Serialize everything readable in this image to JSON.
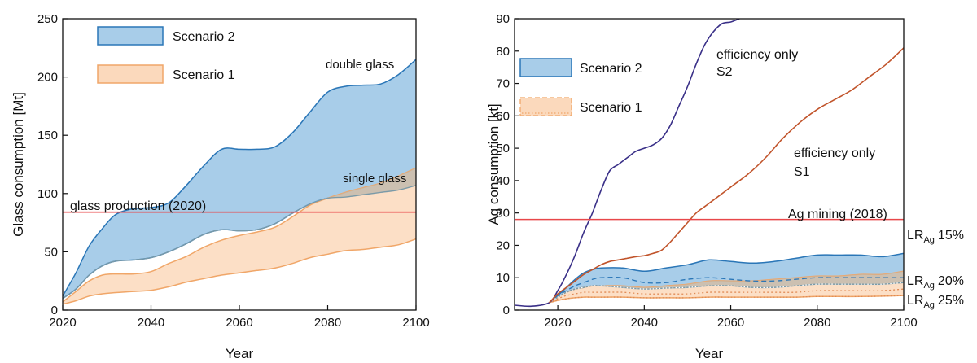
{
  "chart_data": [
    {
      "type": "area",
      "xlabel": "Year",
      "ylabel": "Glass consumption  [Mt]",
      "xlim": [
        2020,
        2100
      ],
      "ylim": [
        0,
        250
      ],
      "xticks": [
        2020,
        2040,
        2060,
        2080,
        2100
      ],
      "yticks": [
        0,
        50,
        100,
        150,
        200,
        250
      ],
      "legend": {
        "placement": "top-left",
        "entries": [
          "Scenario 2",
          "Scenario 1"
        ]
      },
      "colors": {
        "scenario2_fill": "#a8cde9",
        "scenario2_line": "#2a76b7",
        "scenario1_fill": "#fbd9bc",
        "scenario1_line": "#f0a668",
        "overlap_fill": "#c0b8ab",
        "reference": "#e8474a"
      },
      "reference_line": {
        "label": "glass production (2020)",
        "y": 84
      },
      "annotations": [
        "double glass",
        "single glass"
      ],
      "series": [
        {
          "name": "Scenario 2",
          "type": "band",
          "x": [
            2020,
            2023,
            2026,
            2029,
            2032,
            2036,
            2040,
            2044,
            2048,
            2052,
            2056,
            2060,
            2064,
            2068,
            2072,
            2076,
            2080,
            2084,
            2088,
            2092,
            2096,
            2100
          ],
          "upper": [
            12,
            32,
            55,
            70,
            82,
            87,
            88,
            92,
            107,
            124,
            138,
            138,
            138,
            140,
            152,
            170,
            187,
            192,
            193,
            194,
            202,
            215
          ],
          "lower": [
            10,
            18,
            30,
            38,
            42,
            43,
            45,
            50,
            57,
            65,
            69,
            68,
            69,
            74,
            83,
            91,
            96,
            97,
            99,
            101,
            103,
            107
          ]
        },
        {
          "name": "Scenario 1",
          "type": "band",
          "x": [
            2020,
            2023,
            2026,
            2029,
            2032,
            2036,
            2040,
            2044,
            2048,
            2052,
            2056,
            2060,
            2064,
            2068,
            2072,
            2076,
            2080,
            2084,
            2088,
            2092,
            2096,
            2100
          ],
          "upper": [
            7,
            16,
            25,
            30,
            31,
            31,
            33,
            40,
            46,
            54,
            60,
            64,
            67,
            71,
            80,
            90,
            96,
            101,
            105,
            109,
            115,
            122
          ],
          "lower": [
            5,
            8,
            12,
            14,
            15,
            16,
            17,
            20,
            24,
            27,
            30,
            32,
            34,
            36,
            40,
            45,
            48,
            51,
            52,
            54,
            56,
            61
          ]
        }
      ]
    },
    {
      "type": "area",
      "xlabel": "Year",
      "ylabel": "Ag consumption [kt]",
      "xlim": [
        2010,
        2100
      ],
      "ylim": [
        0,
        90
      ],
      "xticks": [
        2020,
        2040,
        2060,
        2080,
        2100
      ],
      "yticks": [
        0,
        10,
        20,
        30,
        40,
        50,
        60,
        70,
        80,
        90
      ],
      "legend": {
        "placement": "top-left",
        "entries": [
          "Scenario 2",
          "Scenario 1"
        ]
      },
      "colors": {
        "scenario2_fill": "#a8cde9",
        "scenario2_line": "#2a76b7",
        "scenario1_fill": "#fbd9bc",
        "scenario1_line": "#f0a668",
        "overlap_fill": "#c0b8ab",
        "reference": "#e8474a",
        "eff_s2": "#3a3088",
        "eff_s1": "#c1542b"
      },
      "reference_line": {
        "label": "Ag mining (2018)",
        "y": 28
      },
      "annotations": [
        "efficiency only",
        "S2",
        "efficiency only",
        "S1"
      ],
      "lr_labels": [
        {
          "base": "LR",
          "sub": "Ag",
          "pct": "15%"
        },
        {
          "base": "LR",
          "sub": "Ag",
          "pct": "20%"
        },
        {
          "base": "LR",
          "sub": "Ag",
          "pct": "25%"
        }
      ],
      "series": [
        {
          "name": "efficiency only S2",
          "type": "line",
          "x": [
            2010,
            2014,
            2018,
            2020,
            2022,
            2024,
            2026,
            2028,
            2030,
            2032,
            2034,
            2036,
            2038,
            2040,
            2042,
            2044,
            2046,
            2048,
            2050,
            2052,
            2054,
            2056,
            2058,
            2060,
            2062
          ],
          "y": [
            1.5,
            1.2,
            2.3,
            6,
            11,
            17,
            24,
            30,
            37,
            43,
            45,
            47,
            49,
            50,
            51,
            53,
            57,
            63,
            69,
            76,
            82,
            86,
            88.5,
            89,
            90
          ]
        },
        {
          "name": "efficiency only S1",
          "type": "line",
          "x": [
            2018,
            2020,
            2022,
            2024,
            2026,
            2028,
            2030,
            2032,
            2034,
            2036,
            2038,
            2040,
            2042,
            2044,
            2046,
            2048,
            2050,
            2052,
            2054,
            2056,
            2060,
            2064,
            2068,
            2072,
            2076,
            2080,
            2084,
            2088,
            2092,
            2096,
            2100
          ],
          "y": [
            2.3,
            5,
            7,
            9,
            11,
            12.5,
            14,
            15,
            15.5,
            16,
            16.5,
            16.8,
            17.5,
            18.5,
            21,
            24,
            27,
            30,
            32,
            34,
            38,
            42,
            47,
            53,
            58,
            62,
            65,
            68,
            72,
            76,
            81
          ]
        },
        {
          "name": "Scenario 2",
          "type": "band",
          "x": [
            2018,
            2020,
            2022,
            2024,
            2026,
            2028,
            2030,
            2035,
            2040,
            2045,
            2050,
            2055,
            2060,
            2065,
            2070,
            2075,
            2080,
            2085,
            2090,
            2095,
            2100
          ],
          "upper": [
            2.3,
            4.5,
            7,
            9.5,
            11.5,
            12.5,
            13,
            13,
            12,
            13,
            14,
            15.5,
            15,
            14.5,
            15,
            16,
            17,
            17,
            17,
            16.5,
            17.5
          ],
          "lower": [
            2.3,
            4,
            5.5,
            6.5,
            7,
            7.5,
            7.5,
            7,
            6.5,
            6.8,
            7,
            7.5,
            7.5,
            7,
            7,
            7.5,
            8,
            8,
            8,
            8,
            8.5
          ],
          "mid": [
            2.3,
            4.5,
            6,
            7.5,
            8.5,
            9.5,
            10,
            10,
            8.5,
            8.5,
            9.5,
            10,
            9.5,
            9,
            9,
            9.5,
            10,
            10,
            10,
            10,
            10
          ]
        },
        {
          "name": "Scenario 1",
          "type": "band",
          "x": [
            2018,
            2020,
            2022,
            2024,
            2026,
            2028,
            2030,
            2035,
            2040,
            2045,
            2050,
            2055,
            2060,
            2065,
            2070,
            2075,
            2080,
            2085,
            2090,
            2095,
            2100
          ],
          "upper": [
            2.3,
            4,
            5.5,
            6.5,
            7,
            7.5,
            7.5,
            7.5,
            7,
            7.5,
            8,
            9,
            9,
            9,
            9.5,
            10,
            10.5,
            10.5,
            11,
            11,
            12
          ],
          "lower": [
            2.3,
            3,
            3.5,
            3.8,
            4,
            4,
            4,
            4,
            3.8,
            3.8,
            3.8,
            4,
            4,
            4,
            4,
            4,
            4.2,
            4.2,
            4.2,
            4.3,
            4.5
          ],
          "mid": [
            2.3,
            3.5,
            4.5,
            5,
            5.5,
            5.5,
            5.5,
            5.5,
            5,
            5,
            5,
            5.5,
            5.5,
            5.5,
            5.5,
            5.5,
            6,
            6,
            6,
            6,
            6.5
          ]
        }
      ]
    }
  ]
}
